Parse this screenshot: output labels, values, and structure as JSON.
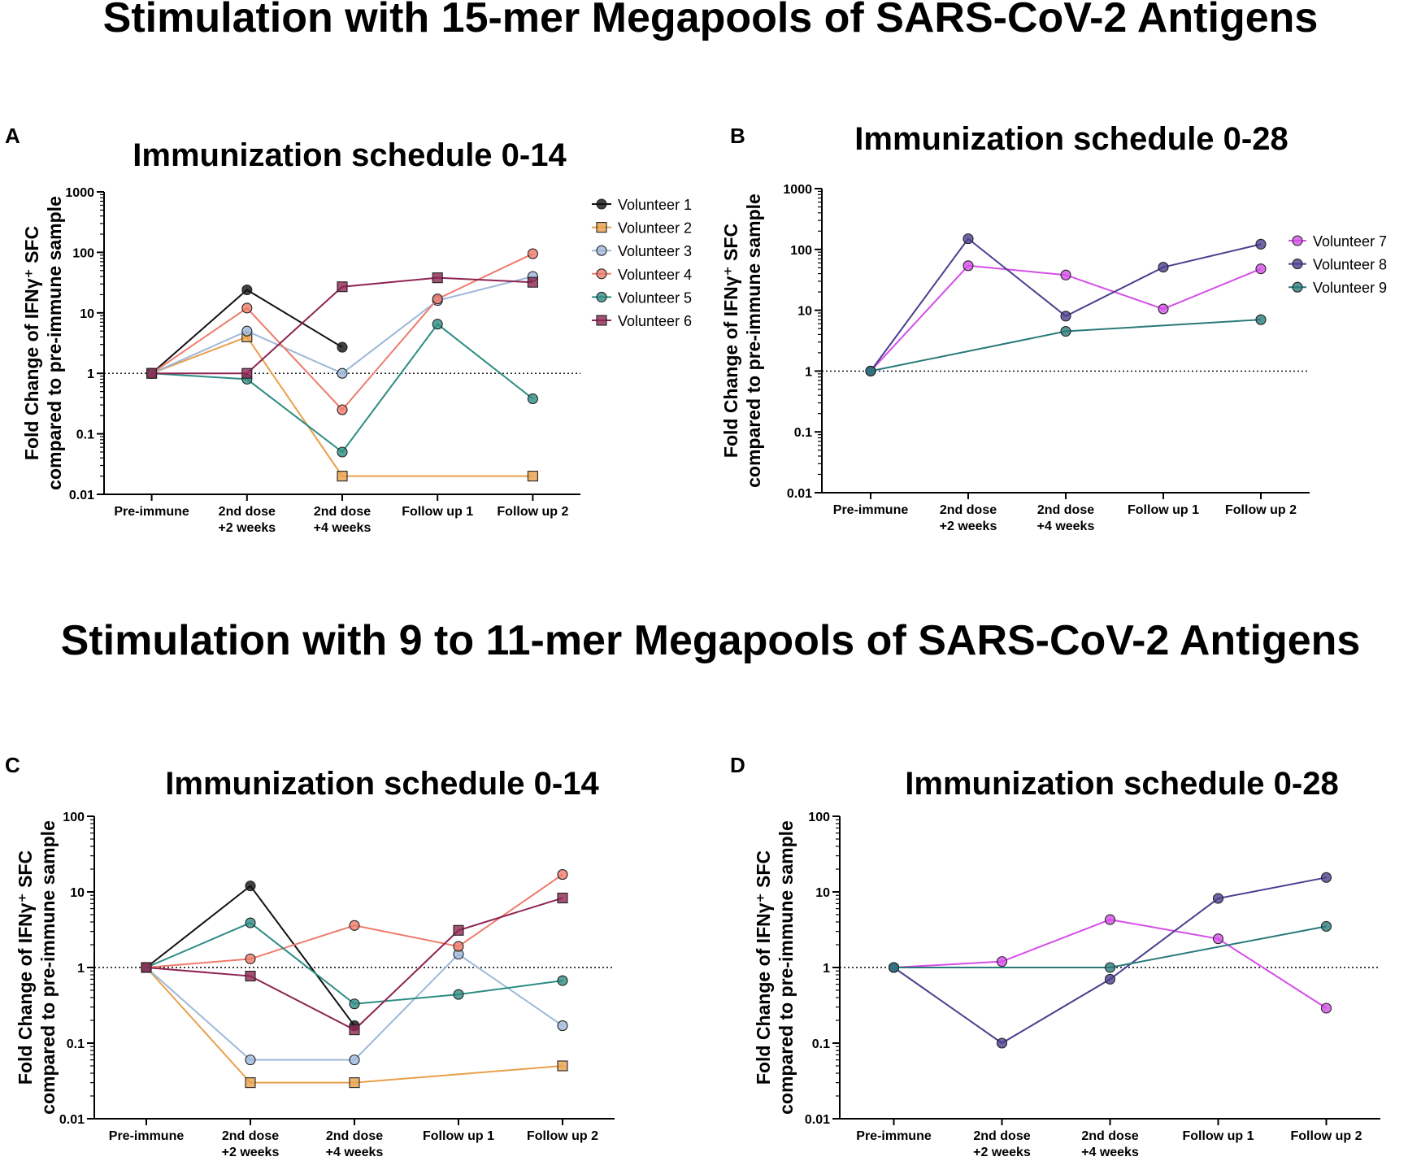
{
  "section_titles": [
    "Stimulation with 15-mer Megapools of SARS-CoV-2 Antigens",
    "Stimulation with 9 to 11-mer Megapools of SARS-CoV-2 Antigens"
  ],
  "colors": {
    "Volunteer 1": "#111111",
    "Volunteer 2": "#e8a04a",
    "Volunteer 3": "#9db8d9",
    "Volunteer 4": "#ee7b6c",
    "Volunteer 5": "#2d8c83",
    "Volunteer 6": "#8e2452",
    "Volunteer 7": "#d54ee8",
    "Volunteer 8": "#4a3f8f",
    "Volunteer 9": "#2a7a7a"
  },
  "chart_data": [
    {
      "panel": "A",
      "type": "line",
      "title": "Immunization schedule 0-14",
      "ylabel": [
        "Fold Change of IFNγ⁺ SFC",
        "compared to pre-immune sample"
      ],
      "yscale": "log",
      "ylim": [
        0.01,
        1000
      ],
      "yticks": [
        "0.01",
        "0.1",
        "1",
        "10",
        "100",
        "1000"
      ],
      "reference_line": 1,
      "categories": [
        [
          "Pre-immune"
        ],
        [
          "2nd dose",
          "+2 weeks"
        ],
        [
          "2nd dose",
          "+4 weeks"
        ],
        [
          "Follow up 1"
        ],
        [
          "Follow up 2"
        ]
      ],
      "legend": "top-right",
      "series": [
        {
          "name": "Volunteer 1",
          "marker": "circle",
          "values": [
            1,
            24,
            2.7,
            null,
            null
          ]
        },
        {
          "name": "Volunteer 2",
          "marker": "square",
          "values": [
            1,
            4,
            0.02,
            null,
            0.02
          ]
        },
        {
          "name": "Volunteer 3",
          "marker": "circle",
          "values": [
            1,
            5,
            1,
            16,
            40
          ]
        },
        {
          "name": "Volunteer 4",
          "marker": "circle",
          "values": [
            1,
            12,
            0.25,
            17,
            95
          ]
        },
        {
          "name": "Volunteer 5",
          "marker": "circle",
          "values": [
            1,
            0.8,
            0.05,
            6.5,
            0.38
          ]
        },
        {
          "name": "Volunteer 6",
          "marker": "square",
          "values": [
            1,
            1,
            27,
            38,
            32
          ]
        }
      ]
    },
    {
      "panel": "B",
      "type": "line",
      "title": "Immunization schedule 0-28",
      "ylabel": [
        "Fold Change of IFNγ⁺ SFC",
        "compared to pre-immune sample"
      ],
      "yscale": "log",
      "ylim": [
        0.01,
        1000
      ],
      "yticks": [
        "0.01",
        "0.1",
        "1",
        "10",
        "100",
        "1000"
      ],
      "reference_line": 1,
      "categories": [
        [
          "Pre-immune"
        ],
        [
          "2nd dose",
          "+2 weeks"
        ],
        [
          "2nd dose",
          "+4 weeks"
        ],
        [
          "Follow up 1"
        ],
        [
          "Follow up 2"
        ]
      ],
      "legend": "right",
      "series": [
        {
          "name": "Volunteer 7",
          "marker": "circle",
          "values": [
            1,
            54,
            38,
            10.5,
            48
          ]
        },
        {
          "name": "Volunteer 8",
          "marker": "circle",
          "values": [
            1,
            150,
            8,
            51,
            122
          ]
        },
        {
          "name": "Volunteer 9",
          "marker": "circle",
          "values": [
            1,
            null,
            4.5,
            null,
            7
          ]
        }
      ]
    },
    {
      "panel": "C",
      "type": "line",
      "title": "Immunization schedule 0-14",
      "ylabel": [
        "Fold Change of IFNγ⁺ SFC",
        "compared to pre-immune sample"
      ],
      "yscale": "log",
      "ylim": [
        0.01,
        100
      ],
      "yticks": [
        "0.01",
        "0.1",
        "1",
        "10",
        "100"
      ],
      "reference_line": 1,
      "categories": [
        [
          "Pre-immune"
        ],
        [
          "2nd dose",
          "+2 weeks"
        ],
        [
          "2nd dose",
          "+4 weeks"
        ],
        [
          "Follow up 1"
        ],
        [
          "Follow up 2"
        ]
      ],
      "legend": "none",
      "series": [
        {
          "name": "Volunteer 1",
          "marker": "circle",
          "values": [
            1,
            12,
            0.17,
            null,
            null
          ]
        },
        {
          "name": "Volunteer 2",
          "marker": "square",
          "values": [
            1,
            0.03,
            0.03,
            null,
            0.05
          ]
        },
        {
          "name": "Volunteer 3",
          "marker": "circle",
          "values": [
            1,
            0.06,
            0.06,
            1.5,
            0.17
          ]
        },
        {
          "name": "Volunteer 4",
          "marker": "circle",
          "values": [
            1,
            1.3,
            3.6,
            1.9,
            17
          ]
        },
        {
          "name": "Volunteer 5",
          "marker": "circle",
          "values": [
            1,
            3.9,
            0.33,
            0.44,
            0.67
          ]
        },
        {
          "name": "Volunteer 6",
          "marker": "square",
          "values": [
            1,
            0.77,
            0.15,
            3.1,
            8.3
          ]
        }
      ]
    },
    {
      "panel": "D",
      "type": "line",
      "title": "Immunization schedule 0-28",
      "ylabel": [
        "Fold Change of IFNγ⁺ SFC",
        "compared to pre-immune sample"
      ],
      "yscale": "log",
      "ylim": [
        0.01,
        100
      ],
      "yticks": [
        "0.01",
        "0.1",
        "1",
        "10",
        "100"
      ],
      "reference_line": 1,
      "categories": [
        [
          "Pre-immune"
        ],
        [
          "2nd dose",
          "+2 weeks"
        ],
        [
          "2nd dose",
          "+4 weeks"
        ],
        [
          "Follow up 1"
        ],
        [
          "Follow up 2"
        ]
      ],
      "legend": "none",
      "series": [
        {
          "name": "Volunteer 7",
          "marker": "circle",
          "values": [
            1,
            1.2,
            4.3,
            2.4,
            0.29
          ]
        },
        {
          "name": "Volunteer 8",
          "marker": "circle",
          "values": [
            1,
            0.1,
            0.7,
            8.2,
            15.5
          ]
        },
        {
          "name": "Volunteer 9",
          "marker": "circle",
          "values": [
            1,
            null,
            1,
            null,
            3.5
          ]
        }
      ]
    }
  ]
}
